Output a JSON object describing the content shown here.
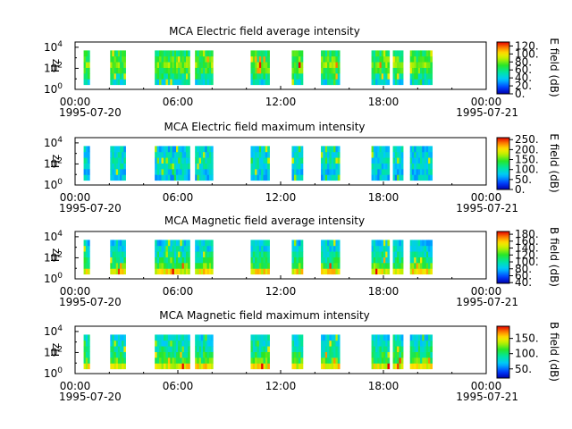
{
  "chart_data": [
    {
      "type": "heatmap",
      "title": "MCA  Electric field average intensity",
      "ylabel": "Hz",
      "yscale": "log",
      "ytick_base": "10",
      "yticks_exp": [
        "0",
        "2",
        "4"
      ],
      "xticks": [
        "00:00",
        "06:00",
        "12:00",
        "18:00",
        "00:00"
      ],
      "xdate_left": "1995-07-20",
      "xdate_right": "1995-07-21",
      "xlim_hours": [
        0,
        24
      ],
      "ylim_log10": [
        0,
        4.5
      ],
      "colorbar_label": "E field (dB)",
      "colorbar_ticks": [
        "120.",
        "100.",
        "80.",
        "60.",
        "40.",
        "20.",
        "0."
      ],
      "colorbar_values": [
        120,
        100,
        80,
        60,
        40,
        20,
        0
      ],
      "colorbar_range": [
        0,
        130
      ],
      "intervals_hours": [
        [
          0.5,
          0.85
        ],
        [
          2.05,
          2.95
        ],
        [
          4.65,
          5.55
        ],
        [
          5.55,
          6.7
        ],
        [
          7.0,
          8.05
        ],
        [
          10.25,
          11.35
        ],
        [
          12.65,
          13.3
        ],
        [
          14.35,
          15.45
        ],
        [
          17.3,
          18.35
        ],
        [
          18.55,
          19.15
        ],
        [
          19.55,
          20.85
        ]
      ],
      "intensity_profile": [
        0.35,
        0.45,
        0.55,
        0.6,
        0.55,
        0.5
      ]
    },
    {
      "type": "heatmap",
      "title": "MCA  Electric field maximum intensity",
      "ylabel": "Hz",
      "yscale": "log",
      "ytick_base": "10",
      "yticks_exp": [
        "0",
        "2",
        "4"
      ],
      "xticks": [
        "00:00",
        "06:00",
        "12:00",
        "18:00",
        "00:00"
      ],
      "xdate_left": "1995-07-20",
      "xdate_right": "1995-07-21",
      "xlim_hours": [
        0,
        24
      ],
      "ylim_log10": [
        0,
        4.5
      ],
      "colorbar_label": "E field (dB)",
      "colorbar_ticks": [
        "250.",
        "200.",
        "150.",
        "100.",
        "50.",
        "0."
      ],
      "colorbar_values": [
        250,
        200,
        150,
        100,
        50,
        0
      ],
      "colorbar_range": [
        0,
        260
      ],
      "intervals_hours": [
        [
          0.5,
          0.85
        ],
        [
          2.05,
          2.95
        ],
        [
          4.65,
          5.55
        ],
        [
          5.55,
          6.7
        ],
        [
          7.0,
          8.05
        ],
        [
          10.25,
          11.35
        ],
        [
          12.65,
          13.3
        ],
        [
          14.35,
          15.45
        ],
        [
          17.3,
          18.35
        ],
        [
          18.55,
          19.15
        ],
        [
          19.55,
          20.85
        ]
      ],
      "intensity_profile": [
        0.3,
        0.32,
        0.35,
        0.36,
        0.34,
        0.32
      ]
    },
    {
      "type": "heatmap",
      "title": "MCA  Magnetic field average intensity",
      "ylabel": "Hz",
      "yscale": "log",
      "ytick_base": "10",
      "yticks_exp": [
        "0",
        "2",
        "4"
      ],
      "xticks": [
        "00:00",
        "06:00",
        "12:00",
        "18:00",
        "00:00"
      ],
      "xdate_left": "1995-07-20",
      "xdate_right": "1995-07-21",
      "xlim_hours": [
        0,
        24
      ],
      "ylim_log10": [
        0,
        4.5
      ],
      "colorbar_label": "B field (dB)",
      "colorbar_ticks": [
        "180.",
        "160.",
        "140.",
        "120.",
        "100.",
        "80.",
        "60.",
        "40."
      ],
      "colorbar_values": [
        180,
        160,
        140,
        120,
        100,
        80,
        60,
        40
      ],
      "colorbar_range": [
        38,
        188
      ],
      "intervals_hours": [
        [
          0.5,
          0.85
        ],
        [
          2.05,
          2.95
        ],
        [
          4.65,
          5.55
        ],
        [
          5.55,
          6.7
        ],
        [
          7.0,
          8.05
        ],
        [
          10.25,
          11.35
        ],
        [
          12.65,
          13.3
        ],
        [
          14.35,
          15.45
        ],
        [
          17.3,
          18.35
        ],
        [
          18.55,
          19.15
        ],
        [
          19.55,
          20.85
        ]
      ],
      "intensity_profile": [
        0.75,
        0.55,
        0.45,
        0.4,
        0.35,
        0.32
      ]
    },
    {
      "type": "heatmap",
      "title": "MCA  Magnetic field maximum intensity",
      "ylabel": "Hz",
      "yscale": "log",
      "ytick_base": "10",
      "yticks_exp": [
        "0",
        "2",
        "4"
      ],
      "xticks": [
        "00:00",
        "06:00",
        "12:00",
        "18:00",
        "00:00"
      ],
      "xdate_left": "1995-07-20",
      "xdate_right": "1995-07-21",
      "xlim_hours": [
        0,
        24
      ],
      "ylim_log10": [
        0,
        4.5
      ],
      "colorbar_label": "B field (dB)",
      "colorbar_ticks": [
        "150.",
        "100.",
        "50."
      ],
      "colorbar_values": [
        150,
        100,
        50
      ],
      "colorbar_range": [
        20,
        190
      ],
      "intervals_hours": [
        [
          0.5,
          0.85
        ],
        [
          2.05,
          2.95
        ],
        [
          4.65,
          5.55
        ],
        [
          5.55,
          6.7
        ],
        [
          7.0,
          8.05
        ],
        [
          10.25,
          11.35
        ],
        [
          12.65,
          13.3
        ],
        [
          14.35,
          15.45
        ],
        [
          17.3,
          18.35
        ],
        [
          18.55,
          19.15
        ],
        [
          19.55,
          20.85
        ]
      ],
      "intensity_profile": [
        0.75,
        0.55,
        0.48,
        0.42,
        0.38,
        0.35
      ]
    }
  ]
}
